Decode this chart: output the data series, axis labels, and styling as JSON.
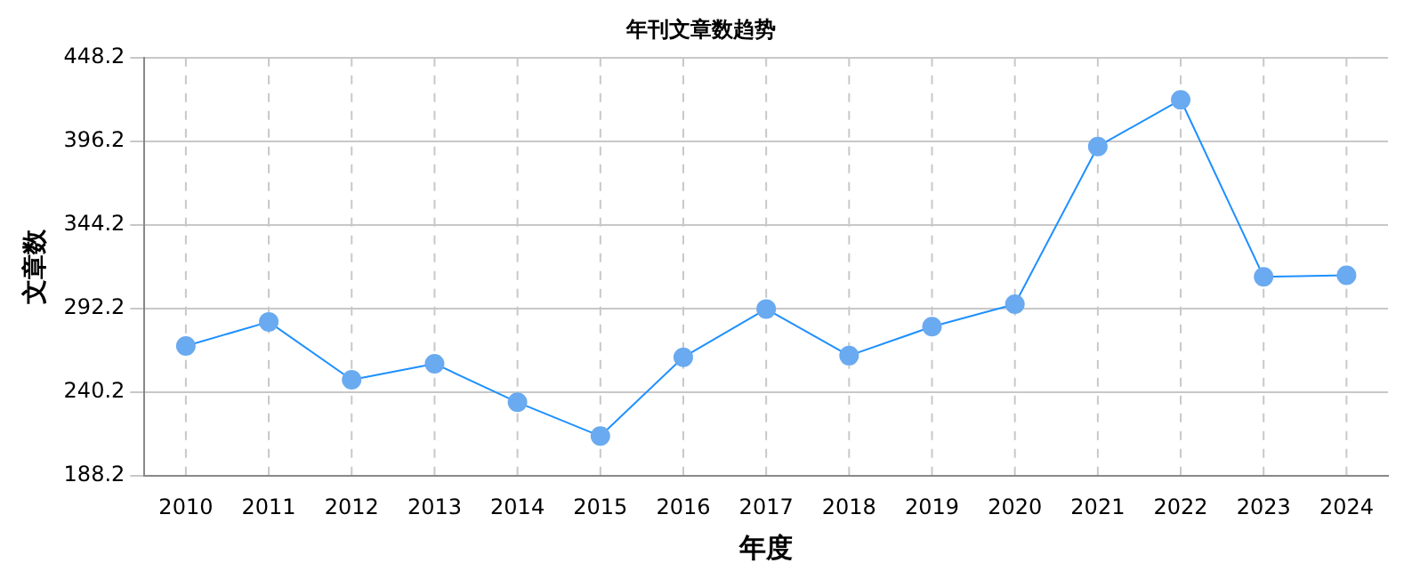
{
  "chart_data": {
    "type": "line",
    "title": "年刊文章数趋势",
    "xlabel": "年度",
    "ylabel": "文章数",
    "categories": [
      "2010",
      "2011",
      "2012",
      "2013",
      "2014",
      "2015",
      "2016",
      "2017",
      "2018",
      "2019",
      "2020",
      "2021",
      "2022",
      "2023",
      "2024"
    ],
    "series": [
      {
        "color": "#1e90ff",
        "values": [
          269,
          284,
          248,
          258,
          234,
          213,
          262,
          292,
          263,
          281,
          295,
          393,
          422,
          312,
          313
        ]
      }
    ],
    "ylim": [
      188.2,
      448.2
    ],
    "yticks": [
      188.2,
      240.2,
      292.2,
      344.2,
      396.2,
      448.2
    ],
    "grid": true,
    "legend": false,
    "marker": "circle",
    "line_style": "solid"
  }
}
